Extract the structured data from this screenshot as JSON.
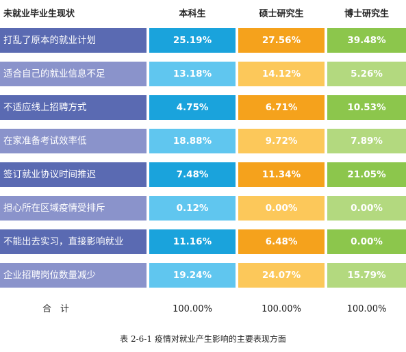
{
  "header": {
    "row_label": "未就业毕业生现状",
    "col1": "本科生",
    "col2": "硕士研究生",
    "col3": "博士研究生"
  },
  "rows": [
    {
      "label": "打乱了原本的就业计划",
      "v1": "25.19%",
      "v2": "27.56%",
      "v3": "39.48%"
    },
    {
      "label": "适合自己的就业信息不足",
      "v1": "13.18%",
      "v2": "14.12%",
      "v3": "5.26%"
    },
    {
      "label": "不适应线上招聘方式",
      "v1": "4.75%",
      "v2": "6.71%",
      "v3": "10.53%"
    },
    {
      "label": "在家准备考试效率低",
      "v1": "18.88%",
      "v2": "9.72%",
      "v3": "7.89%"
    },
    {
      "label": "签订就业协议时间推迟",
      "v1": "7.48%",
      "v2": "11.34%",
      "v3": "21.05%"
    },
    {
      "label": "担心所在区域疫情受排斥",
      "v1": "0.12%",
      "v2": "0.00%",
      "v3": "0.00%"
    },
    {
      "label": "不能出去实习，直接影响就业",
      "v1": "11.16%",
      "v2": "6.48%",
      "v3": "0.00%"
    },
    {
      "label": "企业招聘岗位数量减少",
      "v1": "19.24%",
      "v2": "24.07%",
      "v3": "15.79%"
    }
  ],
  "total": {
    "label": "合　计",
    "v1": "100.00%",
    "v2": "100.00%",
    "v3": "100.00%"
  },
  "caption": "表 2-6-1  疫情对就业产生影响的主要表现方面",
  "colors": {
    "label_dark": "#5a6ab2",
    "label_light": "#8a93cb",
    "col1_dark": "#1aa3dc",
    "col1_light": "#60c6ef",
    "col2_dark": "#f5a21c",
    "col2_light": "#fcc85a",
    "col3_dark": "#8cc64c",
    "col3_light": "#b3d97f"
  }
}
